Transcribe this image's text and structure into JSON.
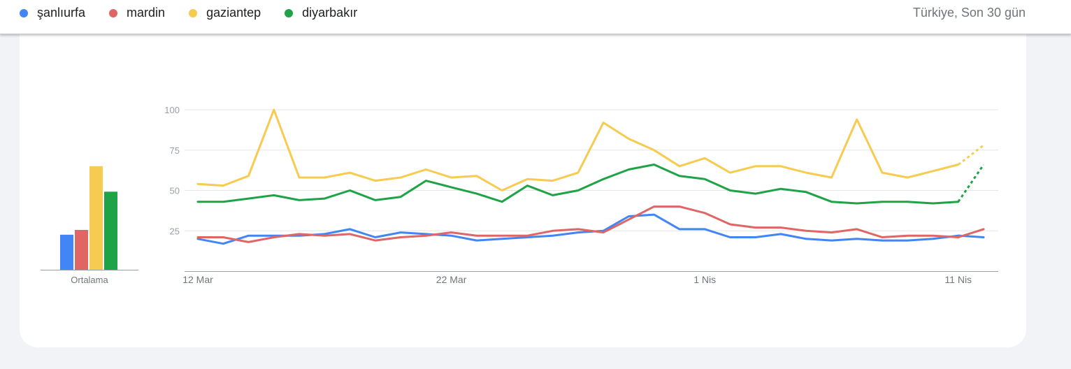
{
  "header": {
    "region_label": "Türkiye, Son 30 gün"
  },
  "legend": [
    {
      "name": "şanlıurfa",
      "color": "#4285f4"
    },
    {
      "name": "mardin",
      "color": "#e06666"
    },
    {
      "name": "gaziantep",
      "color": "#f6cb4f"
    },
    {
      "name": "diyarbakır",
      "color": "#1ea446"
    }
  ],
  "chart_data": [
    {
      "type": "bar",
      "xlabel": "Ortalama",
      "categories": [
        "şanlıurfa",
        "mardin",
        "gaziantep",
        "diyarbakır"
      ],
      "values": [
        22,
        25,
        65,
        49
      ],
      "colors": [
        "#4285f4",
        "#e06666",
        "#f6cb4f",
        "#1ea446"
      ]
    },
    {
      "type": "line",
      "x": [
        "12 Mar",
        "13 Mar",
        "14 Mar",
        "15 Mar",
        "16 Mar",
        "17 Mar",
        "18 Mar",
        "19 Mar",
        "20 Mar",
        "21 Mar",
        "22 Mar",
        "23 Mar",
        "24 Mar",
        "25 Mar",
        "26 Mar",
        "27 Mar",
        "28 Mar",
        "29 Mar",
        "30 Mar",
        "31 Mar",
        "1 Nis",
        "2 Nis",
        "3 Nis",
        "4 Nis",
        "5 Nis",
        "6 Nis",
        "7 Nis",
        "8 Nis",
        "9 Nis",
        "10 Nis",
        "11 Nis",
        "12 Nis"
      ],
      "xticks": [
        "12 Mar",
        "22 Mar",
        "1 Nis",
        "11 Nis"
      ],
      "yticks": [
        100,
        75,
        50,
        25
      ],
      "ylim": [
        0,
        100
      ],
      "grid": true,
      "partial_last_point": true,
      "series": [
        {
          "name": "şanlıurfa",
          "color": "#4285f4",
          "values": [
            20,
            17,
            22,
            22,
            22,
            23,
            26,
            21,
            24,
            23,
            22,
            19,
            20,
            21,
            22,
            24,
            25,
            34,
            35,
            26,
            26,
            21,
            21,
            23,
            20,
            19,
            20,
            19,
            19,
            20,
            22,
            21
          ]
        },
        {
          "name": "mardin",
          "color": "#e06666",
          "values": [
            21,
            21,
            18,
            21,
            23,
            22,
            23,
            19,
            21,
            22,
            24,
            22,
            22,
            22,
            25,
            26,
            24,
            32,
            40,
            40,
            36,
            29,
            27,
            27,
            25,
            24,
            26,
            21,
            22,
            22,
            21,
            26
          ]
        },
        {
          "name": "gaziantep",
          "color": "#f6cb4f",
          "values": [
            54,
            53,
            59,
            100,
            58,
            58,
            61,
            56,
            58,
            63,
            58,
            59,
            50,
            57,
            56,
            61,
            92,
            82,
            75,
            65,
            70,
            61,
            65,
            65,
            61,
            58,
            94,
            61,
            58,
            62,
            66,
            78
          ]
        },
        {
          "name": "diyarbakır",
          "color": "#1ea446",
          "values": [
            43,
            43,
            45,
            47,
            44,
            45,
            50,
            44,
            46,
            56,
            52,
            48,
            43,
            53,
            47,
            50,
            57,
            63,
            66,
            59,
            57,
            50,
            48,
            51,
            49,
            43,
            42,
            43,
            43,
            42,
            43,
            66
          ]
        }
      ]
    }
  ]
}
